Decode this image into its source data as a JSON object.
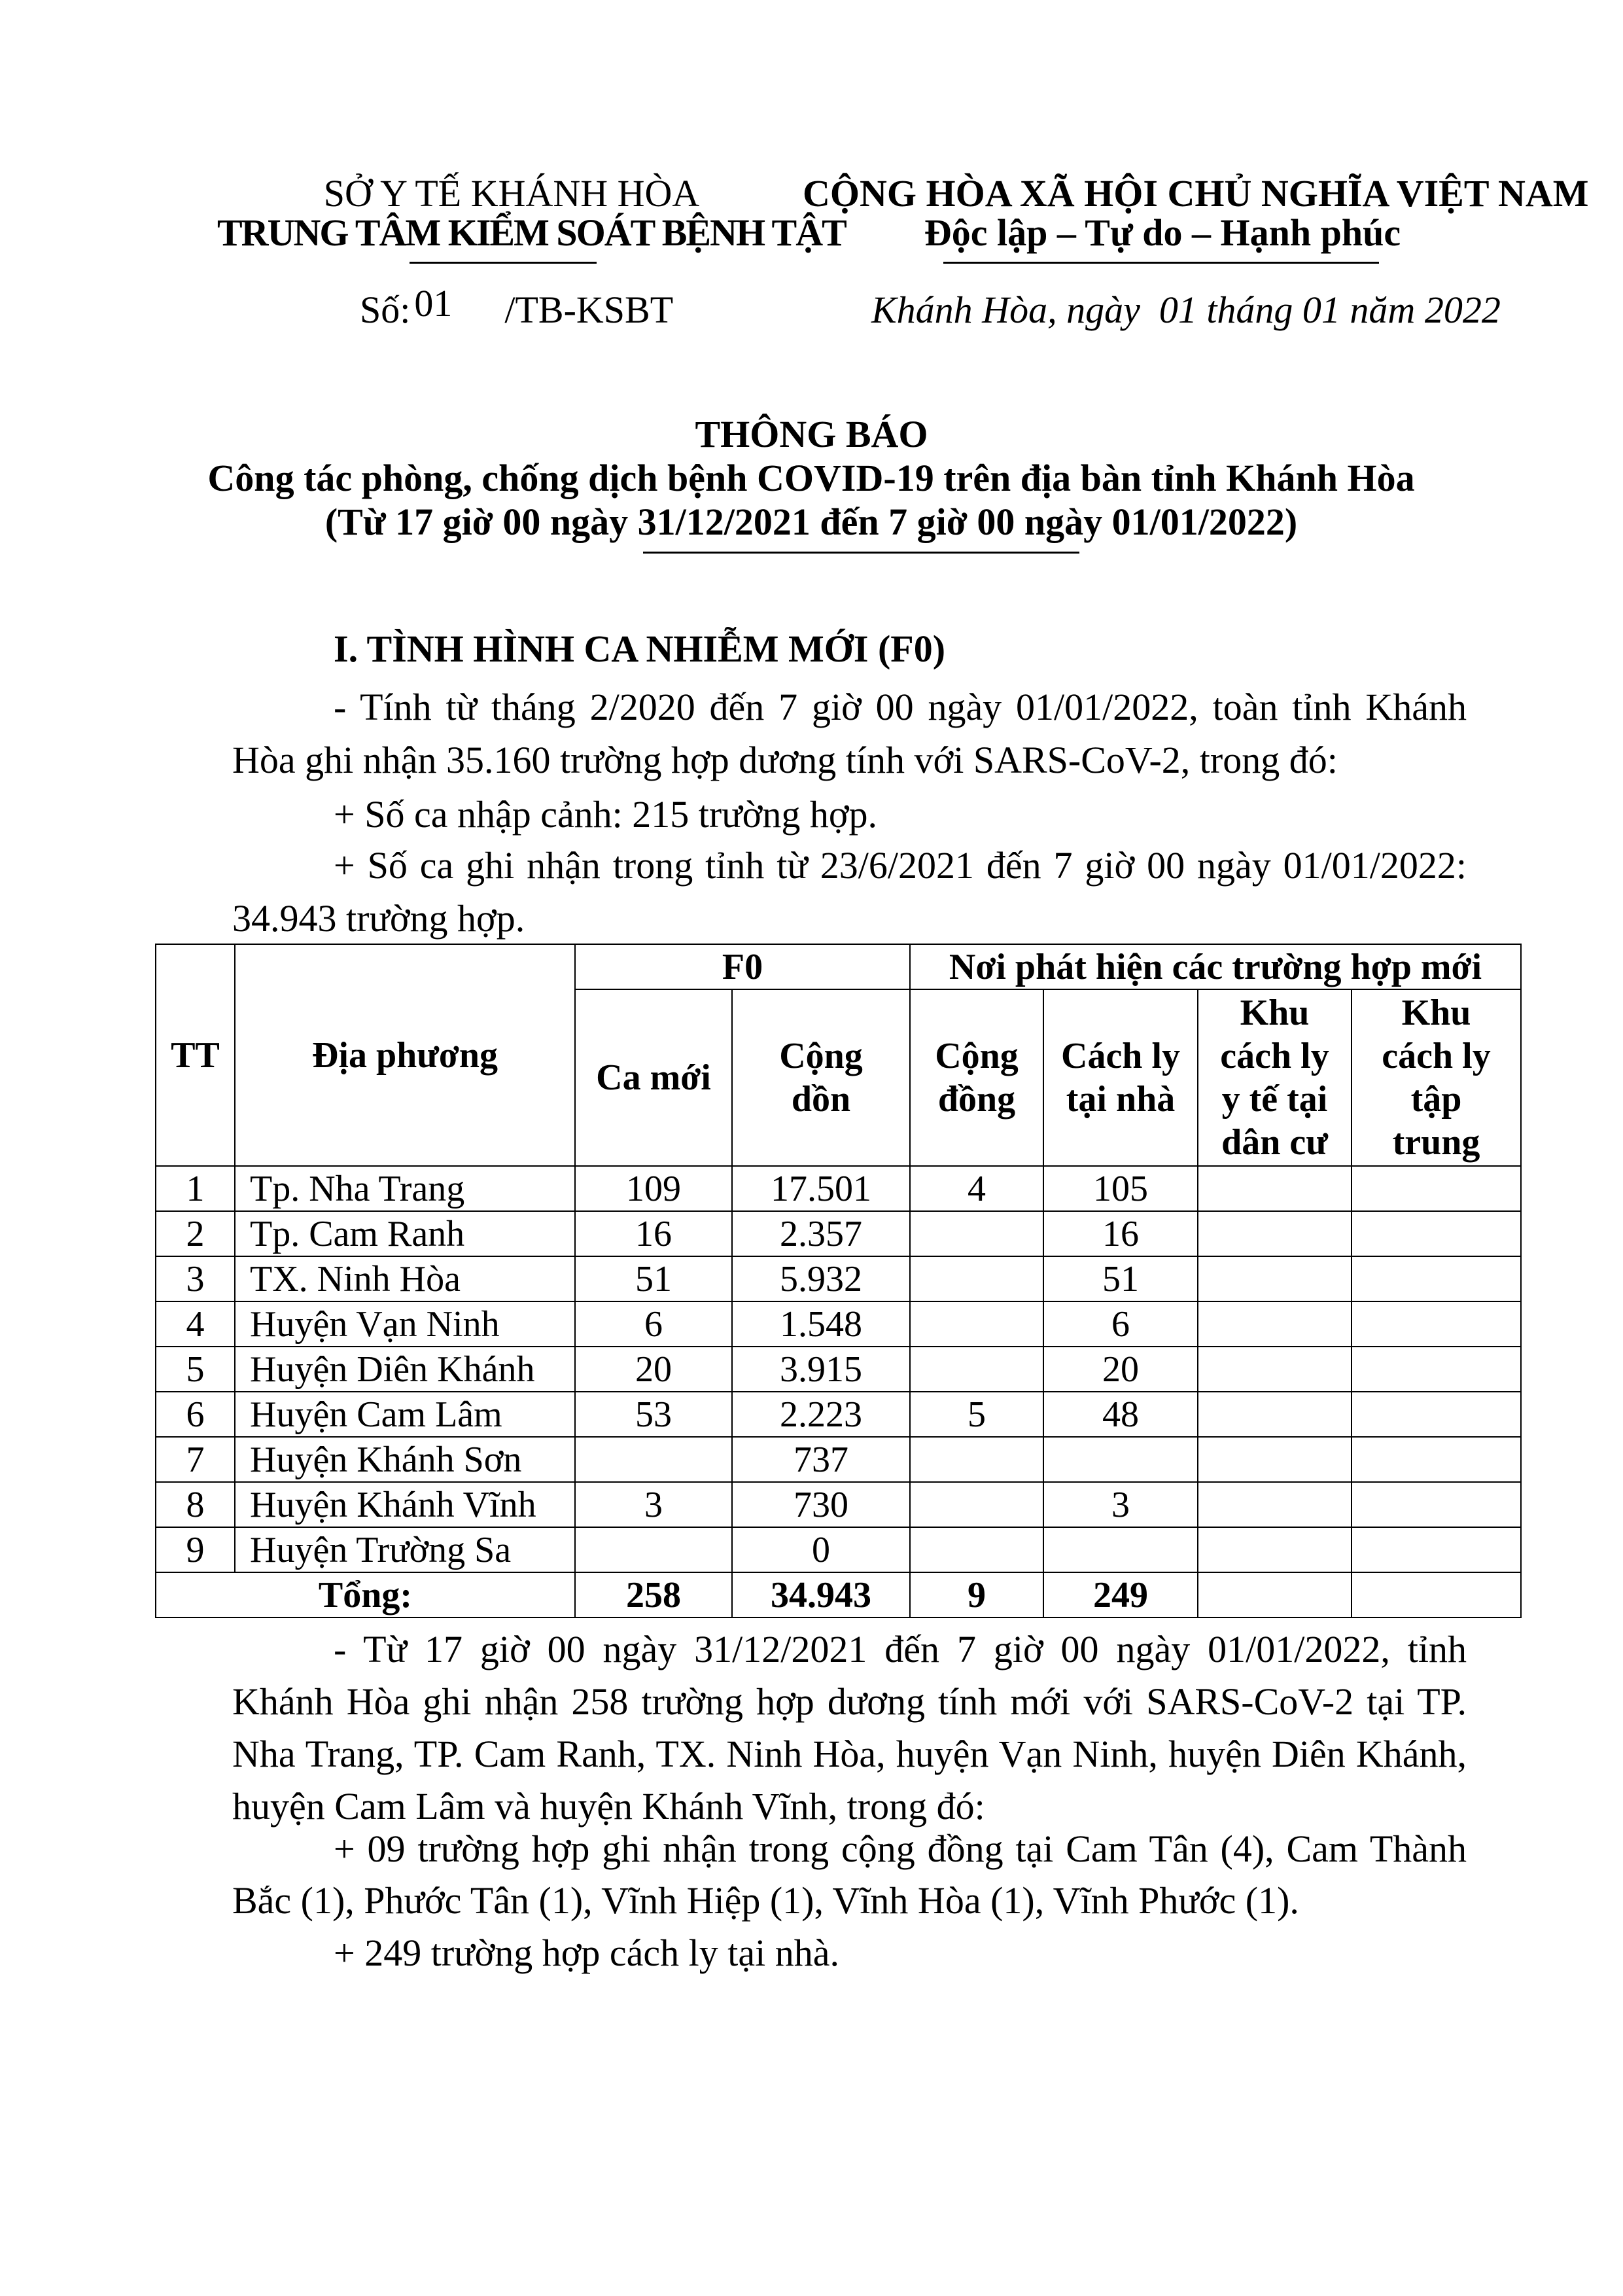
{
  "header": {
    "agency_parent": "SỞ Y TẾ KHÁNH HÒA",
    "agency": "TRUNG TÂM KIỂM SOÁT BỆNH TẬT",
    "country": "CỘNG HÒA XÃ HỘI CHỦ NGHĨA VIỆT NAM",
    "motto": "Độc lập – Tự do – Hạnh phúc",
    "number_label": "Số:",
    "number": "01",
    "number_suffix": "/TB-KSBT",
    "place_date": "Khánh Hòa, ngày  01 tháng 01 năm 2022"
  },
  "title": {
    "main": "THÔNG BÁO",
    "subtitle": "Công tác phòng, chống dịch bệnh COVID-19 trên địa bàn tỉnh Khánh Hòa",
    "period": "(Từ 17 giờ 00 ngày 31/12/2021 đến 7 giờ 00 ngày 01/01/2022)"
  },
  "section1": {
    "heading": "I. TÌNH HÌNH CA NHIỄM MỚI (F0)",
    "p1": "- Tính từ tháng 2/2020 đến 7 giờ 00 ngày 01/01/2022, toàn tỉnh Khánh Hòa ghi nhận 35.160 trường hợp dương tính với SARS-CoV-2, trong đó:",
    "p2": "+ Số ca nhập cảnh: 215 trường hợp.",
    "p3": "+ Số ca ghi nhận trong tỉnh từ 23/6/2021 đến 7 giờ 00 ngày 01/01/2022: 34.943 trường hợp.",
    "p4": "- Từ 17 giờ 00 ngày 31/12/2021 đến 7 giờ 00 ngày 01/01/2022, tỉnh Khánh Hòa ghi nhận 258 trường hợp dương tính mới với SARS-CoV-2 tại TP. Nha Trang, TP. Cam Ranh, TX. Ninh Hòa, huyện Vạn Ninh, huyện Diên Khánh, huyện Cam Lâm và huyện Khánh Vĩnh, trong đó:",
    "p5": "+ 09 trường hợp ghi nhận trong cộng đồng tại Cam Tân (4), Cam Thành Bắc (1), Phước Tân (1), Vĩnh Hiệp (1), Vĩnh Hòa (1), Vĩnh Phước (1).",
    "p6": "+ 249 trường hợp cách ly tại nhà."
  },
  "table": {
    "headers": {
      "tt": "TT",
      "locality": "Địa phương",
      "f0": "F0",
      "found_at": "Nơi phát hiện các trường hợp mới",
      "new_cases": "Ca mới",
      "cumulative": [
        "Cộng",
        "dồn"
      ],
      "community": [
        "Cộng",
        "đồng"
      ],
      "home_isolation": [
        "Cách ly",
        "tại nhà"
      ],
      "medical_isolation": [
        "Khu",
        "cách ly",
        "y tế tại",
        "dân cư"
      ],
      "central_isolation": [
        "Khu",
        "cách ly",
        "tập",
        "trung"
      ]
    },
    "rows": [
      [
        "1",
        "Tp. Nha Trang",
        "109",
        "17.501",
        "4",
        "105",
        "",
        ""
      ],
      [
        "2",
        "Tp. Cam Ranh",
        "16",
        "2.357",
        "",
        "16",
        "",
        ""
      ],
      [
        "3",
        "TX. Ninh Hòa",
        "51",
        "5.932",
        "",
        "51",
        "",
        ""
      ],
      [
        "4",
        "Huyện Vạn Ninh",
        "6",
        "1.548",
        "",
        "6",
        "",
        ""
      ],
      [
        "5",
        "Huyện Diên Khánh",
        "20",
        "3.915",
        "",
        "20",
        "",
        ""
      ],
      [
        "6",
        "Huyện Cam Lâm",
        "53",
        "2.223",
        "5",
        "48",
        "",
        ""
      ],
      [
        "7",
        "Huyện Khánh Sơn",
        "",
        "737",
        "",
        "",
        "",
        ""
      ],
      [
        "8",
        "Huyện Khánh Vĩnh",
        "3",
        "730",
        "",
        "3",
        "",
        ""
      ],
      [
        "9",
        "Huyện Trường Sa",
        "",
        "0",
        "",
        "",
        "",
        ""
      ]
    ],
    "total": [
      "Tổng:",
      "258",
      "34.943",
      "9",
      "249",
      "",
      ""
    ]
  }
}
